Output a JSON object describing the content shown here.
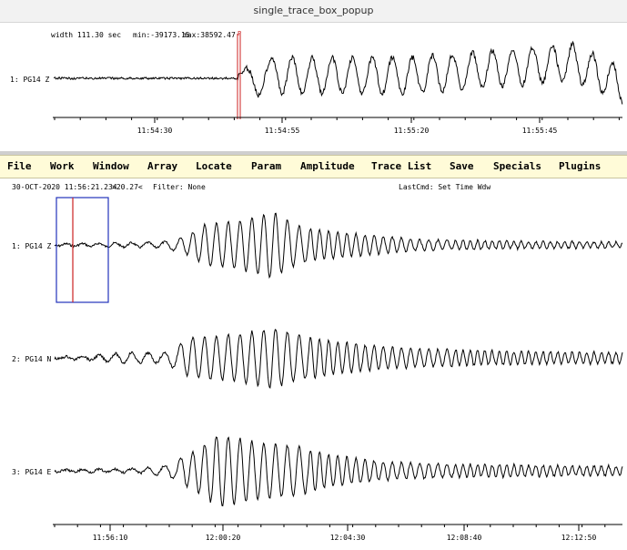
{
  "window": {
    "title": "single_trace_box_popup"
  },
  "popup": {
    "info": {
      "width": "width 111.30 sec",
      "min": "min:-39173.15",
      "max": "max:38592.47"
    },
    "trace_label": "1: PG14 Z",
    "pick_label": "P",
    "time_ticks": [
      "11:54:30",
      "11:54:55",
      "11:55:20",
      "11:55:45"
    ]
  },
  "menu": {
    "items": [
      "File",
      "Work",
      "Window",
      "Array",
      "Locate",
      "Param",
      "Amplitude",
      "Trace List",
      "Save",
      "Specials",
      "Plugins"
    ]
  },
  "main": {
    "status": {
      "datetime": "30-OCT-2020 11:56:21.234",
      "zoom": ">20.27<",
      "filter": "Filter: None",
      "last_cmd": "LastCmd: Set Time Wdw"
    },
    "traces": [
      {
        "label": "1: PG14 Z"
      },
      {
        "label": "2: PG14 N"
      },
      {
        "label": "3: PG14 E"
      }
    ],
    "time_ticks": [
      "11:56:10",
      "12:00:20",
      "12:04:30",
      "12:08:40",
      "12:12:50"
    ]
  },
  "colors": {
    "trace": "#000000",
    "pick_marker": "#cc2222",
    "selection_box": "#2233bb",
    "menubar": "#fffbd8"
  }
}
